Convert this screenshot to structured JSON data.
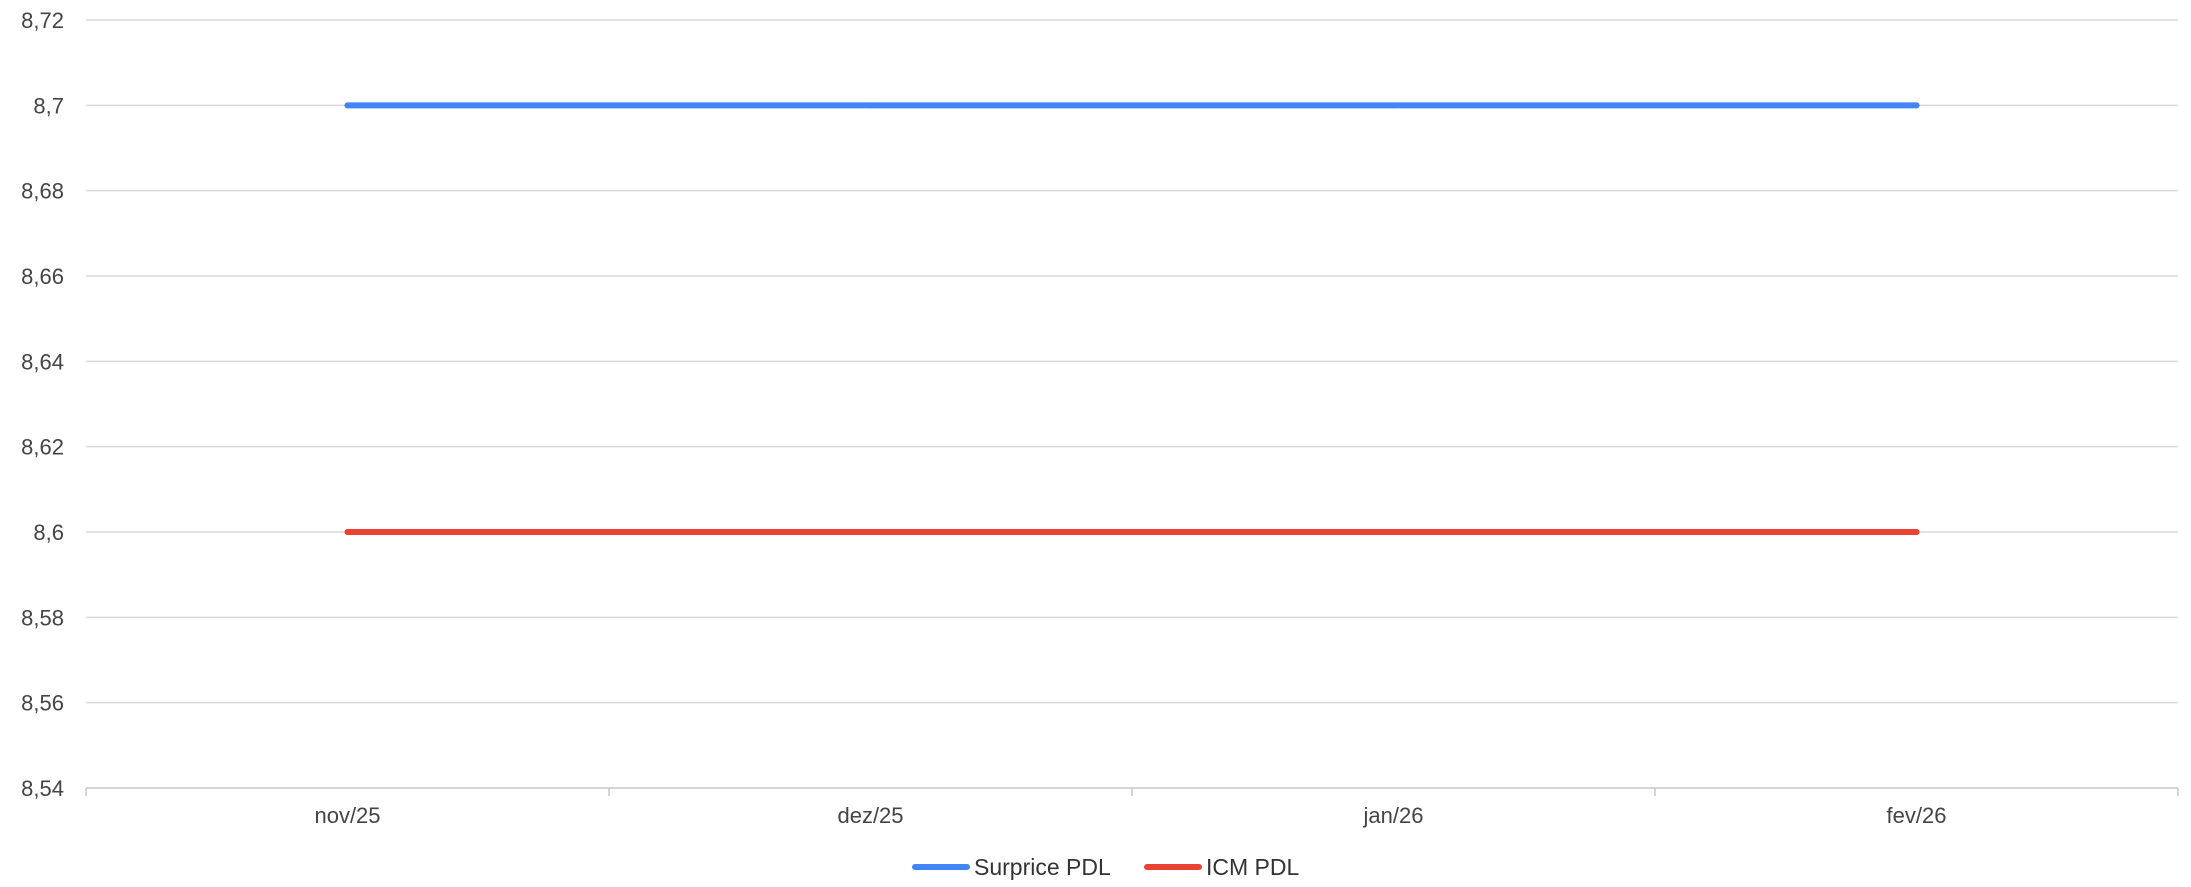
{
  "chart_data": {
    "type": "line",
    "categories": [
      "nov/25",
      "dez/25",
      "jan/26",
      "fev/26"
    ],
    "series": [
      {
        "name": "Surprice PDL",
        "values": [
          8.7,
          8.7,
          8.7,
          8.7
        ],
        "color": "#4285f4"
      },
      {
        "name": "ICM PDL",
        "values": [
          8.6,
          8.6,
          8.6,
          8.6
        ],
        "color": "#ea4335"
      }
    ],
    "ylim": [
      8.54,
      8.72
    ],
    "y_ticks": [
      8.54,
      8.56,
      8.58,
      8.6,
      8.62,
      8.64,
      8.66,
      8.68,
      8.7,
      8.72
    ],
    "y_tick_labels": [
      "8,54",
      "8,56",
      "8,58",
      "8,6",
      "8,62",
      "8,64",
      "8,66",
      "8,68",
      "8,7",
      "8,72"
    ],
    "title": "",
    "xlabel": "",
    "ylabel": "",
    "grid": true,
    "legend_position": "bottom",
    "colors": {
      "grid": "#d9d9d9",
      "axis": "#c7c7c7",
      "tick_text": "#444444",
      "legend_text": "#333333"
    }
  }
}
